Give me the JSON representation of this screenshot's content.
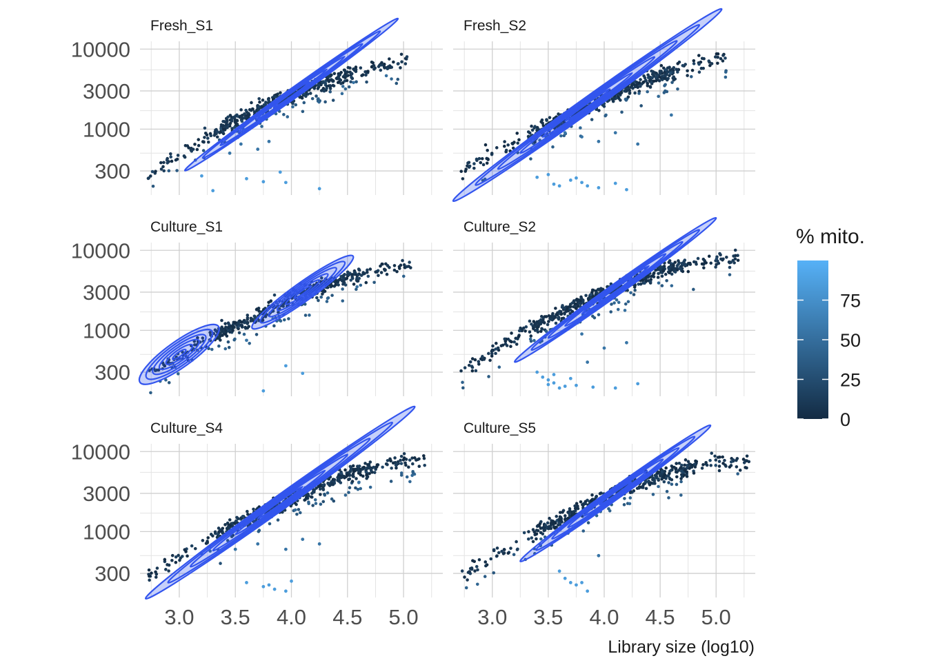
{
  "chart_data": {
    "type": "scatter",
    "xlabel": "Library size (log10)",
    "ylabel": "",
    "x_scale": "linear",
    "y_scale": "log10",
    "xlim": [
      2.65,
      5.35
    ],
    "ylim": [
      150,
      12500
    ],
    "x_ticks": [
      3.0,
      3.5,
      4.0,
      4.5,
      5.0
    ],
    "x_tick_labels": [
      "3.0",
      "3.5",
      "4.0",
      "4.5",
      "5.0"
    ],
    "y_ticks": [
      300,
      1000,
      3000,
      10000
    ],
    "y_tick_labels": [
      "300",
      "1000",
      "3000",
      "10000"
    ],
    "grid": true,
    "color_legend": {
      "title": "% mito.",
      "ticks": [
        0,
        25,
        50,
        75
      ],
      "tick_labels": [
        "0",
        "25",
        "50",
        "75"
      ],
      "range": [
        0,
        100
      ],
      "low_color": "#132B43",
      "high_color": "#56B1F7",
      "placement": "right"
    },
    "overlay": "density contours",
    "overlay_color": "#3355EE",
    "panels": [
      {
        "name": "Fresh_S1",
        "trend": [
          [
            2.7,
            260
          ],
          [
            3.0,
            480
          ],
          [
            3.5,
            1300
          ],
          [
            4.0,
            2700
          ],
          [
            4.5,
            5100
          ],
          [
            5.0,
            7200
          ]
        ],
        "x_range": [
          2.72,
          5.05
        ],
        "contours": [
          {
            "cx": 4.0,
            "cy": 2700,
            "rx": 0.95,
            "ry": 0.07
          }
        ],
        "outliers": [
          [
            3.2,
            260
          ],
          [
            3.3,
            170
          ],
          [
            3.6,
            240
          ],
          [
            3.75,
            220
          ],
          [
            3.9,
            290
          ],
          [
            3.95,
            215
          ],
          [
            4.25,
            180
          ],
          [
            3.55,
            650
          ],
          [
            3.7,
            560
          ],
          [
            3.45,
            500
          ],
          [
            3.8,
            700
          ]
        ]
      },
      {
        "name": "Fresh_S2",
        "trend": [
          [
            2.7,
            270
          ],
          [
            3.0,
            480
          ],
          [
            3.5,
            1100
          ],
          [
            4.0,
            2400
          ],
          [
            4.5,
            4800
          ],
          [
            5.0,
            7500
          ]
        ],
        "x_range": [
          2.72,
          5.1
        ],
        "contours": [
          {
            "cx": 3.85,
            "cy": 2000,
            "rx": 1.2,
            "ry": 0.1
          }
        ],
        "outliers": [
          [
            3.4,
            250
          ],
          [
            3.55,
            205
          ],
          [
            3.6,
            195
          ],
          [
            3.75,
            245
          ],
          [
            3.8,
            215
          ],
          [
            3.85,
            195
          ],
          [
            3.95,
            185
          ],
          [
            4.1,
            210
          ],
          [
            4.2,
            175
          ],
          [
            3.5,
            270
          ],
          [
            3.7,
            230
          ],
          [
            3.95,
            700
          ],
          [
            4.3,
            650
          ],
          [
            3.8,
            800
          ],
          [
            4.1,
            900
          ],
          [
            4.6,
            1500
          ],
          [
            3.65,
            900
          ]
        ]
      },
      {
        "name": "Culture_S1",
        "trend": [
          [
            2.7,
            280
          ],
          [
            3.0,
            450
          ],
          [
            3.3,
            900
          ],
          [
            3.6,
            1300
          ],
          [
            4.0,
            2600
          ],
          [
            4.5,
            4600
          ],
          [
            5.0,
            6500
          ]
        ],
        "x_range": [
          2.72,
          5.08
        ],
        "contours": [
          {
            "cx": 3.0,
            "cy": 500,
            "rx": 0.35,
            "ry": 0.18
          },
          {
            "cx": 4.1,
            "cy": 3000,
            "rx": 0.45,
            "ry": 0.13
          }
        ],
        "outliers": [
          [
            3.75,
            175
          ],
          [
            3.95,
            360
          ],
          [
            4.1,
            290
          ],
          [
            3.6,
            750
          ]
        ]
      },
      {
        "name": "Culture_S2",
        "trend": [
          [
            2.7,
            290
          ],
          [
            3.0,
            560
          ],
          [
            3.5,
            1400
          ],
          [
            4.0,
            3000
          ],
          [
            4.5,
            5600
          ],
          [
            5.0,
            8000
          ]
        ],
        "x_range": [
          2.72,
          5.2
        ],
        "contours": [
          {
            "cx": 4.1,
            "cy": 3200,
            "rx": 0.9,
            "ry": 0.08
          }
        ],
        "outliers": [
          [
            3.4,
            300
          ],
          [
            3.5,
            240
          ],
          [
            3.55,
            220
          ],
          [
            3.5,
            210
          ],
          [
            3.6,
            190
          ],
          [
            3.65,
            200
          ],
          [
            3.75,
            205
          ],
          [
            3.9,
            195
          ],
          [
            4.1,
            190
          ],
          [
            4.3,
            215
          ],
          [
            3.55,
            280
          ],
          [
            3.45,
            260
          ],
          [
            3.7,
            250
          ],
          [
            3.85,
            400
          ],
          [
            4.0,
            600
          ],
          [
            4.2,
            700
          ],
          [
            3.8,
            900
          ]
        ]
      },
      {
        "name": "Culture_S4",
        "trend": [
          [
            2.7,
            280
          ],
          [
            3.0,
            500
          ],
          [
            3.5,
            1200
          ],
          [
            4.0,
            2600
          ],
          [
            4.5,
            5200
          ],
          [
            5.0,
            7600
          ]
        ],
        "x_range": [
          2.72,
          5.2
        ],
        "contours": [
          {
            "cx": 3.9,
            "cy": 2300,
            "rx": 1.2,
            "ry": 0.1
          }
        ],
        "outliers": [
          [
            3.6,
            230
          ],
          [
            3.75,
            205
          ],
          [
            3.8,
            215
          ],
          [
            3.85,
            190
          ],
          [
            3.95,
            180
          ],
          [
            4.0,
            240
          ],
          [
            3.95,
            600
          ],
          [
            4.1,
            800
          ],
          [
            4.25,
            700
          ],
          [
            3.7,
            700
          ],
          [
            3.5,
            600
          ]
        ]
      },
      {
        "name": "Culture_S5",
        "trend": [
          [
            2.7,
            280
          ],
          [
            3.0,
            480
          ],
          [
            3.5,
            1200
          ],
          [
            4.0,
            2800
          ],
          [
            4.5,
            5200
          ],
          [
            5.0,
            7500
          ]
        ],
        "x_range": [
          2.72,
          5.3
        ],
        "contours": [
          {
            "cx": 4.1,
            "cy": 3000,
            "rx": 0.85,
            "ry": 0.08
          }
        ],
        "outliers": [
          [
            3.6,
            320
          ],
          [
            3.65,
            260
          ],
          [
            3.7,
            230
          ],
          [
            3.75,
            215
          ],
          [
            3.85,
            180
          ],
          [
            3.8,
            230
          ],
          [
            3.95,
            500
          ]
        ]
      }
    ]
  }
}
